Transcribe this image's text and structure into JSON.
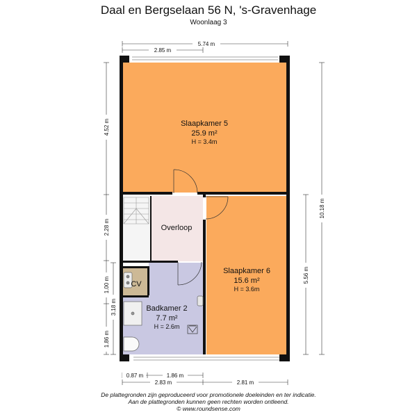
{
  "header": {
    "title": "Daal en Bergselaan 56 N, 's-Gravenhage",
    "subtitle": "Woonlaag 3"
  },
  "rooms": {
    "slaapkamer5": {
      "name": "Slaapkamer 5",
      "area": "25.9 m²",
      "height": "H = 3.4m"
    },
    "overloop": {
      "name": "Overloop"
    },
    "slaapkamer6": {
      "name": "Slaapkamer 6",
      "area": "15.6 m²",
      "height": "H = 3.6m"
    },
    "cv": {
      "name": "CV"
    },
    "badkamer2": {
      "name": "Badkamer 2",
      "area": "7.7 m²",
      "height": "H = 2.6m"
    }
  },
  "dimensions": {
    "top_total": "5.74 m",
    "top_partial": "2.85 m",
    "bottom_a": "0.87 m",
    "bottom_b": "1.86 m",
    "bottom_c": "2.83 m",
    "bottom_d": "2.81 m",
    "left_1": "4.52 m",
    "left_2": "2.28 m",
    "left_3": "1.00 m",
    "left_4": "3.18 m",
    "left_5": "1.86 m",
    "right_total": "10.18 m",
    "right_partial": "5.56 m"
  },
  "colors": {
    "room_orange": "#FBAA5C",
    "room_pink": "#F4E6E6",
    "room_lavender": "#C9C8E2",
    "room_tan": "#CDB996",
    "wall": "#111111"
  },
  "footer": {
    "line1": "De plattegronden zijn geproduceerd voor promotionele doeleinden en ter indicatie.",
    "line2": "Aan de plattegronden kunnen geen rechten worden ontleend.",
    "line3": "© www.roundsense.com"
  }
}
